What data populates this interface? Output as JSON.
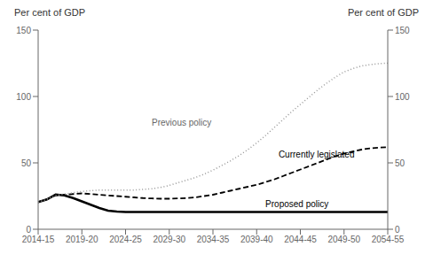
{
  "chart_data": {
    "type": "line",
    "categories": [
      "2014-15",
      null,
      null,
      null,
      null,
      "2019-20",
      null,
      null,
      null,
      null,
      "2024-25",
      null,
      null,
      null,
      null,
      "2029-30",
      null,
      null,
      null,
      null,
      "2034-35",
      null,
      null,
      null,
      null,
      "2039-40",
      null,
      null,
      null,
      null,
      "2044-45",
      null,
      null,
      null,
      null,
      "2049-50",
      null,
      null,
      null,
      null,
      "2054-55"
    ],
    "series": [
      {
        "name": "Proposed policy",
        "color": "#000000",
        "line_style": "solid",
        "values": [
          20.5,
          22.5,
          26.1,
          25.5,
          23.5,
          21.0,
          18.5,
          16.0,
          14.0,
          13.3,
          13.0,
          13.0,
          13.0,
          13.0,
          13.0,
          13.0,
          13.0,
          13.0,
          13.0,
          13.0,
          13.0,
          13.0,
          13.0,
          13.0,
          13.0,
          13.0,
          13.0,
          13.0,
          13.0,
          13.0,
          13.0,
          13.0,
          13.0,
          13.0,
          13.0,
          13.0,
          13.0,
          13.0,
          13.0,
          13.0,
          13.0
        ]
      },
      {
        "name": "Currently legislated",
        "color": "#000000",
        "line_style": "dashed",
        "values": [
          20.5,
          22.5,
          25.5,
          26.0,
          26.5,
          27.0,
          26.5,
          26.0,
          25.5,
          25.0,
          24.5,
          24.0,
          23.5,
          23.2,
          23.0,
          23.0,
          23.2,
          23.5,
          24.0,
          25.0,
          26.0,
          27.5,
          29.0,
          30.5,
          32.0,
          33.5,
          35.5,
          37.5,
          40.0,
          42.5,
          45.0,
          47.5,
          50.0,
          52.5,
          55.0,
          57.0,
          58.5,
          60.0,
          61.0,
          61.5,
          61.8
        ]
      },
      {
        "name": "Previous policy",
        "color": "#999999",
        "line_style": "dotted",
        "values": [
          20.5,
          22.5,
          25.5,
          26.5,
          27.5,
          28.5,
          29.0,
          29.5,
          29.5,
          29.5,
          29.5,
          29.5,
          30.0,
          30.5,
          31.5,
          33.0,
          35.0,
          37.0,
          39.0,
          41.5,
          44.5,
          48.0,
          51.5,
          55.5,
          60.0,
          65.0,
          70.5,
          76.5,
          82.5,
          88.5,
          94.0,
          99.5,
          105.0,
          110.0,
          114.5,
          118.5,
          121.0,
          123.0,
          124.0,
          124.7,
          125.1
        ]
      }
    ],
    "ylim": [
      0,
      150
    ],
    "yticks": [
      0,
      50,
      100,
      150
    ],
    "y2lim": [
      0,
      150
    ],
    "y2ticks": [
      0,
      50,
      100,
      150
    ],
    "ylabel": "Per cent of GDP",
    "y2label": "Per cent of GDP",
    "annotations": [
      {
        "text": "Previous policy",
        "x": 13,
        "y": 78,
        "color": "#666666"
      },
      {
        "text": "Currently legislated",
        "x": 27.5,
        "y": 54,
        "color": "#000000"
      },
      {
        "text": "Proposed policy",
        "x": 26,
        "y": 17,
        "color": "#000000"
      }
    ],
    "grid": false
  }
}
